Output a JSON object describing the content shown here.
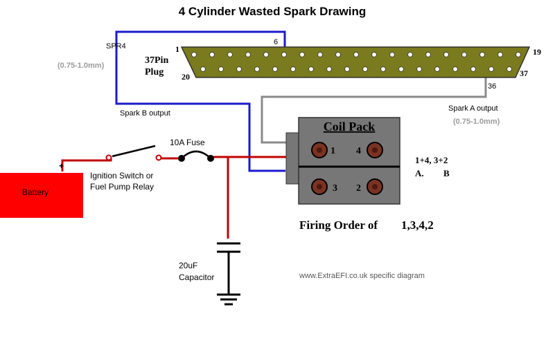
{
  "title": "4 Cylinder Wasted Spark Drawing",
  "labels": {
    "spr4": "SPR4",
    "wire_size_left": "(0.75-1.0mm)",
    "plug_title_line1": "37Pin",
    "plug_title_line2": "Plug",
    "pin_1": "1",
    "pin_6": "6",
    "pin_19": "19",
    "pin_20": "20",
    "pin_36": "36",
    "pin_37": "37",
    "spark_b_output": "Spark B output",
    "spark_a_output": "Spark A output",
    "wire_size_right": "(0.75-1.0mm)",
    "fuse": "10A Fuse",
    "battery": "Battery",
    "battery_plus": "+",
    "ignition_line1": "Ignition Switch or",
    "ignition_line2": "Fuel Pump Relay",
    "coil_pack": "Coil Pack",
    "coil_1": "1",
    "coil_4": "4",
    "coil_3": "3",
    "coil_2": "2",
    "pairing": "1+4, 3+2",
    "pairing_a": "A.",
    "pairing_b": "B",
    "firing_order_text": "Firing Order of",
    "firing_order_value": "1,3,4,2",
    "capacitor_line1": "20uF",
    "capacitor_line2": "Capacitor",
    "website": "www.ExtraEFI.co.uk specific diagram"
  },
  "colors": {
    "blue_wire": "#1a1acc",
    "red_wire": "#c00000",
    "grey_wire": "#8a8a8a",
    "battery": "#ff0000",
    "plug_body": "#7a7a1e",
    "coil_body": "#777777",
    "coil_terminal": "#7a3322"
  }
}
